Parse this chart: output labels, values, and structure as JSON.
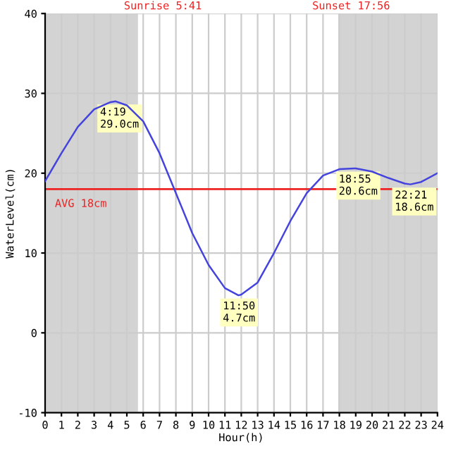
{
  "chart_data": {
    "type": "line",
    "xlabel": "Hour(h)",
    "ylabel": "WaterLevel(cm)",
    "x": [
      0,
      1,
      2,
      3,
      4,
      4.32,
      5,
      6,
      7,
      8,
      9,
      10,
      11,
      11.83,
      12,
      13,
      14,
      15,
      16,
      17,
      18,
      18.92,
      19,
      20,
      21,
      22,
      22.35,
      23,
      24
    ],
    "series": [
      {
        "color": "#4444dd",
        "values": [
          19,
          22.5,
          25.8,
          28,
          28.9,
          29.0,
          28.5,
          26.5,
          22.5,
          17.5,
          12.5,
          8.5,
          5.6,
          4.7,
          4.8,
          6.3,
          10,
          14,
          17.5,
          19.7,
          20.5,
          20.6,
          20.6,
          20.2,
          19.4,
          18.7,
          18.6,
          18.9,
          20
        ]
      }
    ],
    "xlim": [
      0,
      24
    ],
    "xticks": [
      0,
      1,
      2,
      3,
      4,
      5,
      6,
      7,
      8,
      9,
      10,
      11,
      12,
      13,
      14,
      15,
      16,
      17,
      18,
      19,
      20,
      21,
      22,
      23,
      24
    ],
    "ylim": [
      -10,
      40
    ],
    "yticks": [
      -10,
      0,
      10,
      20,
      30,
      40
    ],
    "grid": true,
    "marker": "none",
    "line_style": "solid",
    "ref_lines": [
      {
        "axis": "y",
        "value": 18,
        "label": "AVG 18cm",
        "color": "#ee2222"
      }
    ],
    "bands": [
      {
        "axis": "x",
        "from": 0,
        "to": 5.68,
        "color": "#d3d3d3"
      },
      {
        "axis": "x",
        "from": 17.93,
        "to": 24,
        "color": "#d3d3d3"
      }
    ],
    "annotations": [
      "Sunrise 5:41",
      "Sunset 17:56",
      {
        "text": "4:19\n29.0cm",
        "x": 4.32,
        "y": 29.0
      },
      {
        "text": "11:50\n4.7cm",
        "x": 11.83,
        "y": 4.7
      },
      {
        "text": "18:55\n20.6cm",
        "x": 18.92,
        "y": 20.6
      },
      {
        "text": "22:21\n18.6cm",
        "x": 22.35,
        "y": 18.6
      }
    ]
  }
}
